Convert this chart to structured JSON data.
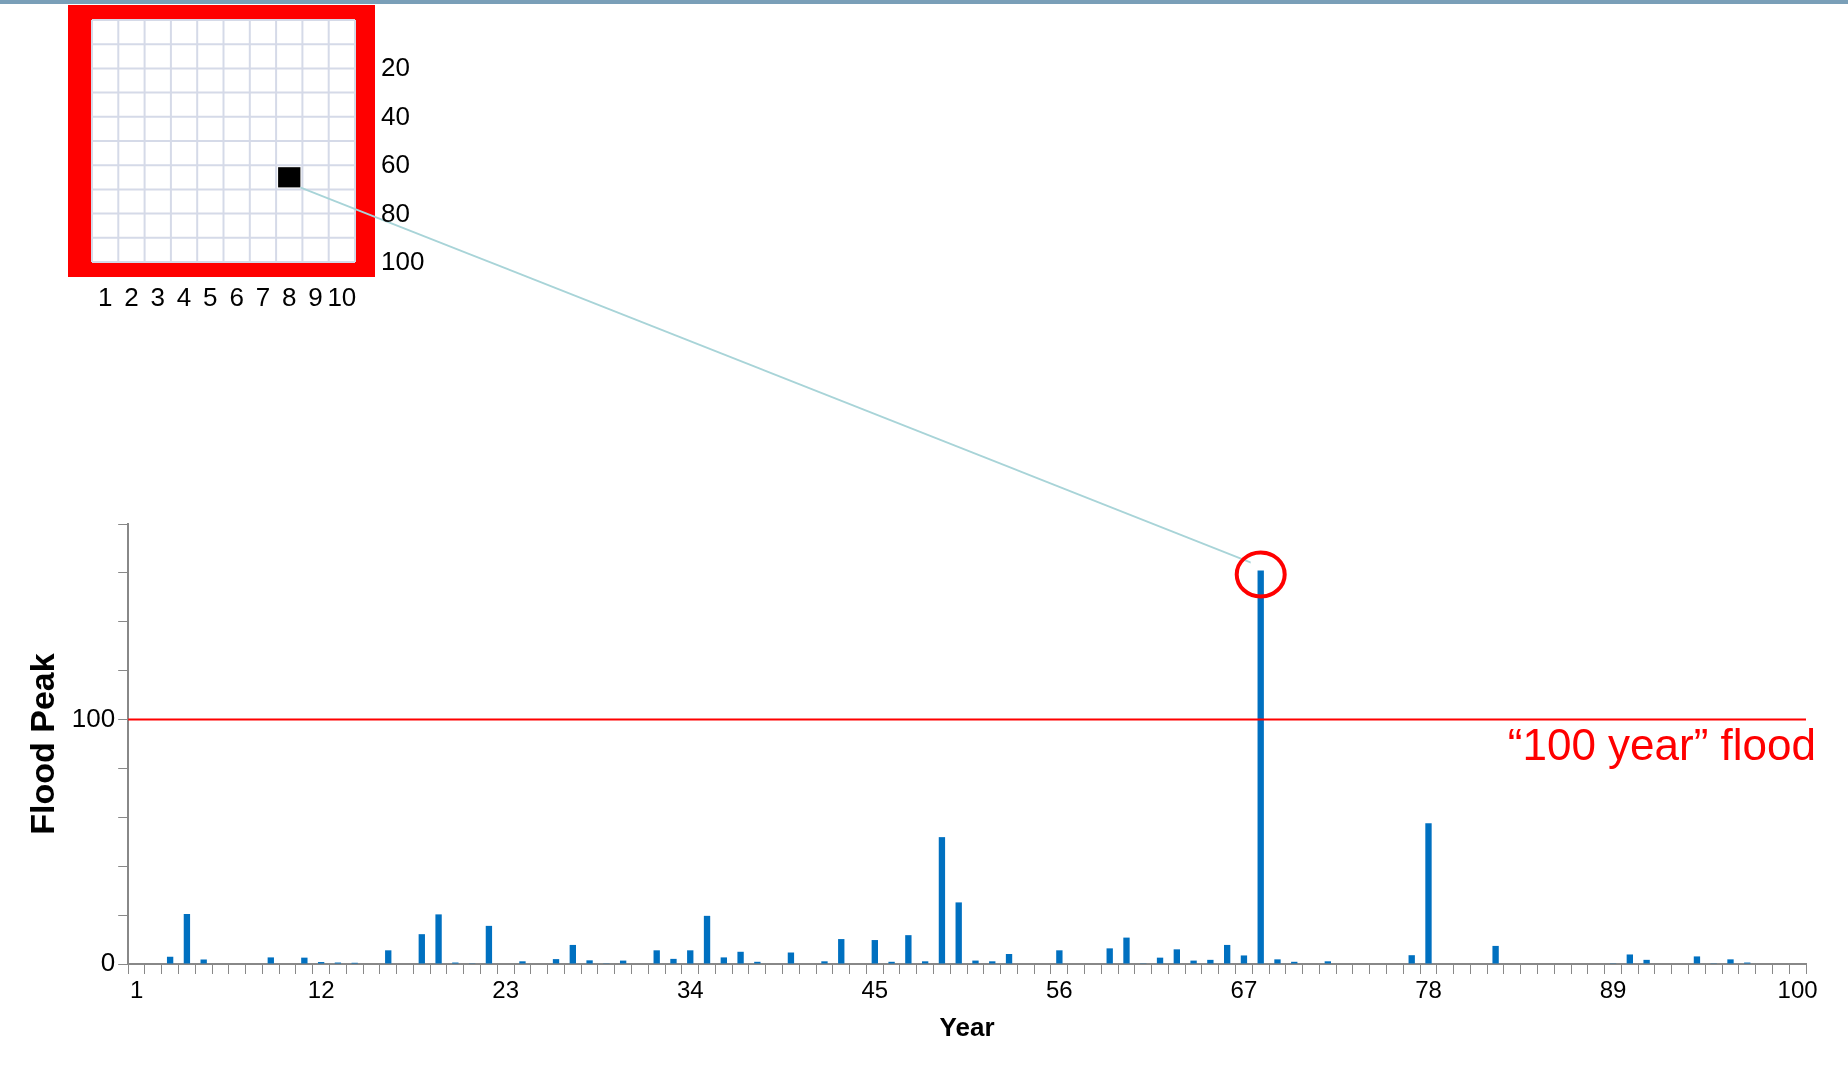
{
  "chart_data": {
    "type": "bar",
    "xlabel": "Year",
    "ylabel": "Flood Peak",
    "categories": [
      "1",
      null,
      null,
      null,
      null,
      null,
      null,
      null,
      null,
      null,
      null,
      "12",
      null,
      null,
      null,
      null,
      null,
      null,
      null,
      null,
      null,
      null,
      "23",
      null,
      null,
      null,
      null,
      null,
      null,
      null,
      null,
      null,
      null,
      "34",
      null,
      null,
      null,
      null,
      null,
      null,
      null,
      null,
      null,
      null,
      "45",
      null,
      null,
      null,
      null,
      null,
      null,
      null,
      null,
      null,
      null,
      "56",
      null,
      null,
      null,
      null,
      null,
      null,
      null,
      null,
      null,
      null,
      "67",
      null,
      null,
      null,
      null,
      null,
      null,
      null,
      null,
      null,
      null,
      "78",
      null,
      null,
      null,
      null,
      null,
      null,
      null,
      null,
      null,
      null,
      "89",
      null,
      null,
      null,
      null,
      null,
      null,
      null,
      null,
      null,
      null,
      "100"
    ],
    "values": [
      0,
      0,
      3,
      20.5,
      1.8,
      0,
      0,
      0,
      2.7,
      0,
      2.6,
      0.8,
      0.6,
      0.5,
      0,
      5.6,
      0,
      12.2,
      20.3,
      0.6,
      0.3,
      15.6,
      0,
      1.1,
      0,
      2,
      7.8,
      1.5,
      0.3,
      1.4,
      0,
      5.6,
      2.1,
      5.6,
      19.7,
      2.7,
      5,
      0.9,
      0,
      4.7,
      0,
      1.1,
      10.2,
      0,
      9.8,
      0.9,
      11.8,
      1.1,
      51.9,
      25.2,
      1.4,
      1.1,
      4.1,
      0,
      0,
      5.6,
      0,
      0,
      6.4,
      10.8,
      0.3,
      2.6,
      6,
      1.4,
      1.7,
      7.8,
      3.5,
      161,
      1.9,
      0.9,
      0,
      1.1,
      0,
      0,
      0,
      0,
      3.6,
      57.6,
      0,
      0,
      0,
      7.4,
      0,
      0,
      0,
      0,
      0,
      0,
      0.3,
      3.9,
      1.7,
      0,
      0,
      3.1,
      0.3,
      1.9,
      0.6,
      0,
      0,
      0
    ],
    "color": "#0070c0",
    "ylim": [
      0,
      180
    ],
    "yticks": [
      0,
      {
        "value": 20,
        "label": null
      },
      {
        "value": 40,
        "label": null
      },
      {
        "value": 60,
        "label": null
      },
      {
        "value": 80,
        "label": null
      },
      100,
      {
        "value": 120,
        "label": null
      },
      {
        "value": 140,
        "label": null
      },
      {
        "value": 160,
        "label": null
      },
      {
        "value": 180,
        "label": null
      }
    ],
    "grid": false,
    "ref_lines": [
      {
        "axis": "y",
        "value": 100,
        "label": "“100 year” flood",
        "color": "#ff0000"
      }
    ],
    "annotations": [
      "20",
      "40",
      "60",
      "80",
      "100",
      "1",
      "2",
      "3",
      "4",
      "5",
      "6",
      "7",
      "8",
      "9",
      "10"
    ]
  }
}
